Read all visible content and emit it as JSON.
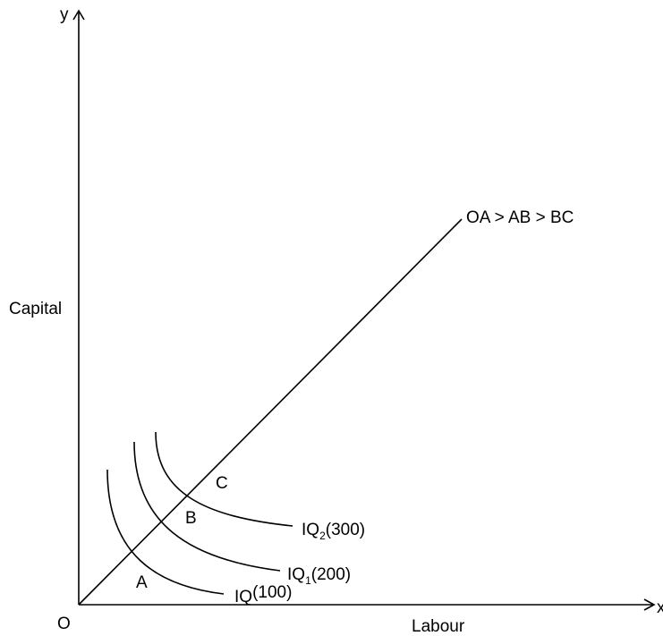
{
  "axes": {
    "y_axis_letter": "y",
    "x_axis_letter": "x",
    "origin_label": "O",
    "y_label": "Capital",
    "x_label": "Labour"
  },
  "expansion_path": {
    "annotation": "OA > AB > BC",
    "points": [
      "A",
      "B",
      "C"
    ]
  },
  "isoquants": [
    {
      "prefix": "IQ",
      "subscript": "",
      "output": "(100)"
    },
    {
      "prefix": "IQ",
      "subscript": "1",
      "output": "(200)"
    },
    {
      "prefix": "IQ",
      "subscript": "2",
      "output": "(300)"
    }
  ],
  "colors": {
    "line": "#000000",
    "background": "#ffffff"
  }
}
